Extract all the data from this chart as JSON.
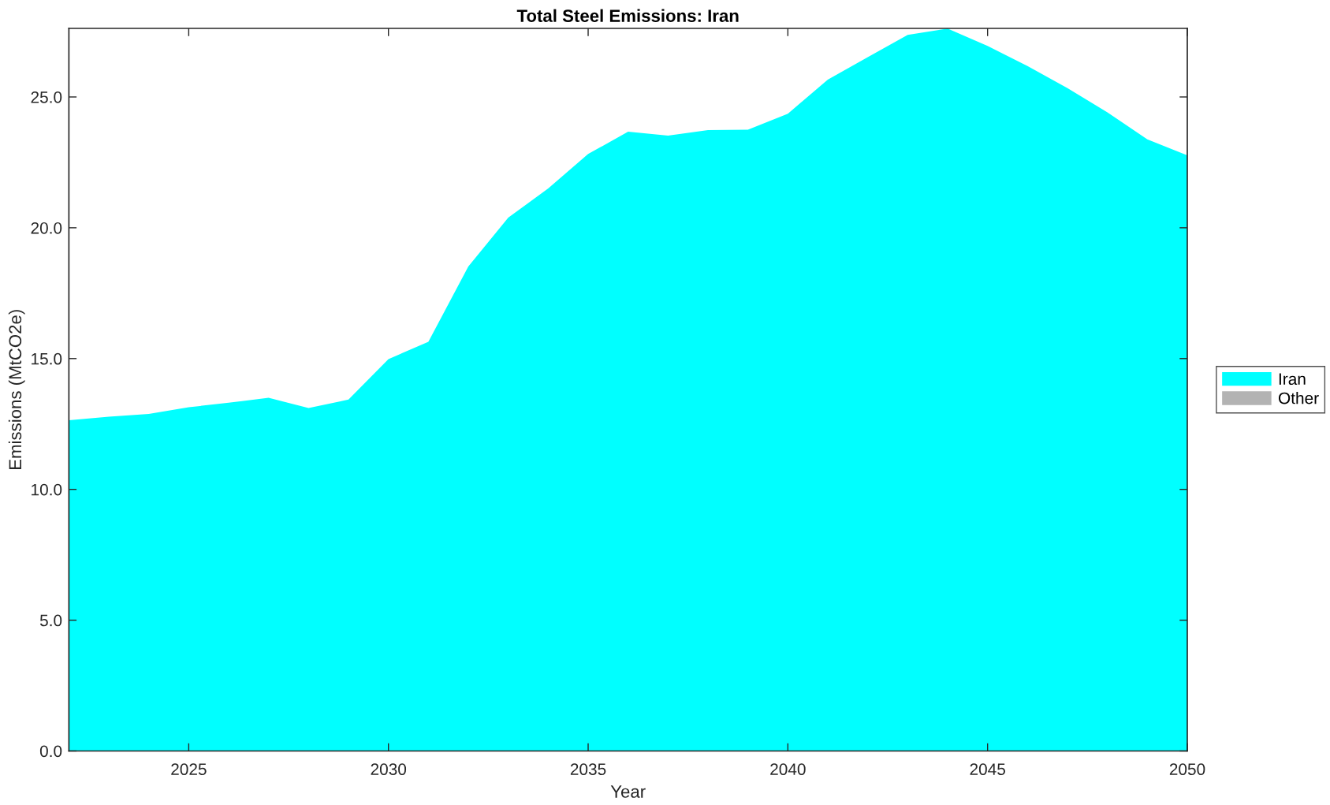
{
  "chart_data": {
    "type": "area",
    "title": "Total Steel Emissions: Iran",
    "xlabel": "Year",
    "ylabel": "Emissions (MtCO2e)",
    "x": [
      2022,
      2023,
      2024,
      2025,
      2026,
      2027,
      2028,
      2029,
      2030,
      2031,
      2032,
      2033,
      2034,
      2035,
      2036,
      2037,
      2038,
      2039,
      2040,
      2041,
      2042,
      2043,
      2044,
      2045,
      2046,
      2047,
      2048,
      2049,
      2050
    ],
    "series": [
      {
        "name": "Iran",
        "color": "#00ffff",
        "values": [
          12.64,
          12.78,
          12.88,
          13.14,
          13.31,
          13.5,
          13.11,
          13.43,
          14.98,
          15.64,
          18.52,
          20.39,
          21.5,
          22.82,
          23.67,
          23.52,
          23.73,
          23.75,
          24.36,
          25.66,
          26.52,
          27.37,
          27.61,
          26.95,
          26.18,
          25.34,
          24.41,
          23.38,
          22.77
        ]
      },
      {
        "name": "Other",
        "color": "#b3b3b3",
        "values": [
          null,
          null,
          null,
          null,
          null,
          null,
          null,
          null,
          null,
          null,
          null,
          null,
          null,
          null,
          null,
          null,
          null,
          null,
          null,
          null,
          null,
          null,
          null,
          null,
          null,
          null,
          null,
          null,
          null
        ]
      }
    ],
    "legend": "right",
    "xlim": [
      2022,
      2050
    ],
    "ylim": [
      0,
      27.62
    ],
    "xticks": [
      2025,
      2030,
      2035,
      2040,
      2045,
      2050
    ],
    "yticks": [
      {
        "value": 0,
        "label": "0.0"
      },
      {
        "value": 5,
        "label": "5.0"
      },
      {
        "value": 10,
        "label": "10.0"
      },
      {
        "value": 15,
        "label": "15.0"
      },
      {
        "value": 20,
        "label": "20.0"
      },
      {
        "value": 25,
        "label": "25.0"
      }
    ]
  }
}
